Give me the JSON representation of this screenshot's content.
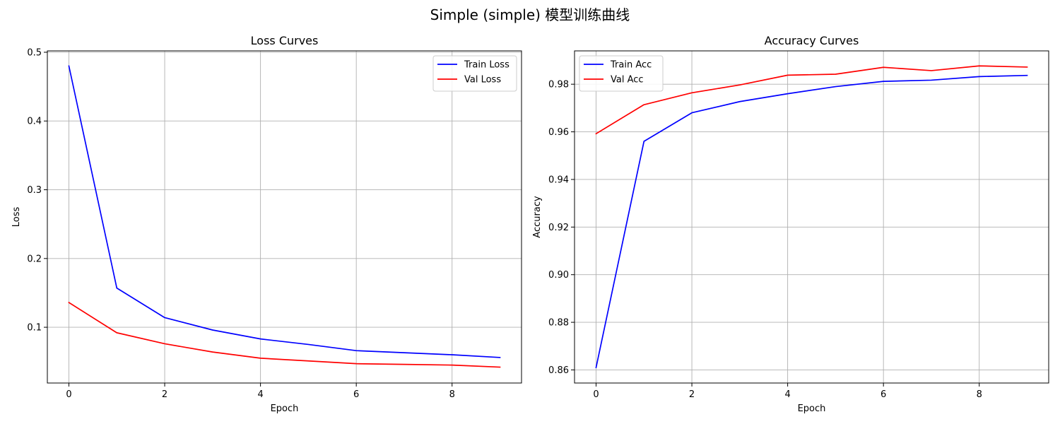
{
  "figure": {
    "suptitle": "Simple (simple) 模型训练曲线"
  },
  "colors": {
    "train": "#0000ff",
    "val": "#ff0000",
    "grid": "#b0b0b0",
    "axis": "#000000"
  },
  "chart_data": [
    {
      "type": "line",
      "title": "Loss Curves",
      "xlabel": "Epoch",
      "ylabel": "Loss",
      "x": [
        0,
        1,
        2,
        3,
        4,
        5,
        6,
        7,
        8,
        9
      ],
      "xlim": [
        -0.45,
        9.45
      ],
      "ylim": [
        0.0189,
        0.502
      ],
      "xticks": [
        0,
        2,
        4,
        6,
        8
      ],
      "xtick_labels": [
        "0",
        "2",
        "4",
        "6",
        "8"
      ],
      "yticks": [
        0.1,
        0.2,
        0.3,
        0.4,
        0.5
      ],
      "ytick_labels": [
        "0.1",
        "0.2",
        "0.3",
        "0.4",
        "0.5"
      ],
      "grid": true,
      "legend_position": "upper right",
      "series": [
        {
          "name": "Train Loss",
          "color": "#0000ff",
          "values": [
            0.48,
            0.157,
            0.114,
            0.096,
            0.083,
            0.075,
            0.066,
            0.063,
            0.06,
            0.056
          ]
        },
        {
          "name": "Val Loss",
          "color": "#ff0000",
          "values": [
            0.136,
            0.092,
            0.076,
            0.064,
            0.055,
            0.051,
            0.047,
            0.046,
            0.045,
            0.042
          ]
        }
      ]
    },
    {
      "type": "line",
      "title": "Accuracy Curves",
      "xlabel": "Epoch",
      "ylabel": "Accuracy",
      "x": [
        0,
        1,
        2,
        3,
        4,
        5,
        6,
        7,
        8,
        9
      ],
      "xlim": [
        -0.45,
        9.45
      ],
      "ylim": [
        0.8545,
        0.994
      ],
      "xticks": [
        0,
        2,
        4,
        6,
        8
      ],
      "xtick_labels": [
        "0",
        "2",
        "4",
        "6",
        "8"
      ],
      "yticks": [
        0.86,
        0.88,
        0.9,
        0.92,
        0.94,
        0.96,
        0.98
      ],
      "ytick_labels": [
        "0.86",
        "0.88",
        "0.90",
        "0.92",
        "0.94",
        "0.96",
        "0.98"
      ],
      "grid": true,
      "legend_position": "upper left",
      "series": [
        {
          "name": "Train Acc",
          "color": "#0000ff",
          "values": [
            0.861,
            0.956,
            0.968,
            0.9727,
            0.976,
            0.979,
            0.9812,
            0.9817,
            0.9832,
            0.9837
          ]
        },
        {
          "name": "Val Acc",
          "color": "#ff0000",
          "values": [
            0.9592,
            0.9714,
            0.9764,
            0.9797,
            0.9838,
            0.9842,
            0.9871,
            0.9857,
            0.9877,
            0.9872
          ]
        }
      ]
    }
  ]
}
